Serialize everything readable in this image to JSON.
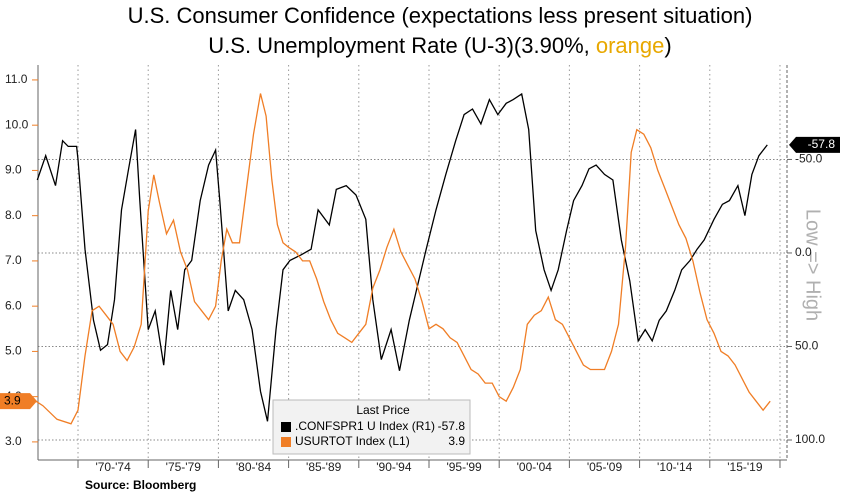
{
  "chart_data": {
    "type": "line",
    "title": "U.S. Consumer Confidence (expectations less present situation)",
    "subtitle_parts": [
      "U.S. Unemployment Rate (U-3)(3.90%, ",
      "orange",
      ")"
    ],
    "subtitle_highlight_color": "#e8a800",
    "y2_label": "Low => High",
    "source": "Source: Bloomberg",
    "legend_title": "Last Price",
    "categories": [
      "'70-'74",
      "'75-'79",
      "'80-'84",
      "'85-'89",
      "'90-'94",
      "'95-'99",
      "'00-'04",
      "'05-'09",
      "'10-'14",
      "'15-'19"
    ],
    "xticks": [
      1970,
      1975,
      1980,
      1985,
      1990,
      1995,
      2000,
      2005,
      2010,
      2015,
      2020
    ],
    "xlim": [
      1967.15,
      2020.5
    ],
    "ylim": [
      2.6,
      11.33
    ],
    "yticks": [
      {
        "value": 3,
        "label": "3.0"
      },
      {
        "value": 4,
        "label": "4.0"
      },
      {
        "value": 5,
        "label": "5.0"
      },
      {
        "value": 6,
        "label": "6.0"
      },
      {
        "value": 7,
        "label": "7.0"
      },
      {
        "value": 8,
        "label": "8.0"
      },
      {
        "value": 9,
        "label": "9.0"
      },
      {
        "value": 10,
        "label": "10.0"
      },
      {
        "value": 11,
        "label": "11.0"
      }
    ],
    "y2lim": [
      110.7,
      -100.5
    ],
    "y2ticks": [
      {
        "value": -50,
        "label": "-50.0"
      },
      {
        "value": 0,
        "label": "0.0"
      },
      {
        "value": 50,
        "label": "50.0"
      },
      {
        "value": 100,
        "label": "100.0"
      }
    ],
    "grid": true,
    "series": [
      {
        "name": ".CONFSPR1 U Index  (R1)",
        "color": "#000000",
        "axis": "y2",
        "x": [
          1967.1,
          1967.7,
          1968.4,
          1968.9,
          1969.3,
          1969.9,
          1970,
          1970.5,
          1971.1,
          1971.6,
          1972.1,
          1972.6,
          1973.1,
          1973.6,
          1974.1,
          1974.4,
          1975,
          1975.5,
          1976.1,
          1976.6,
          1977.1,
          1977.6,
          1978.1,
          1978.7,
          1979.3,
          1979.8,
          1980.1,
          1980.7,
          1981.2,
          1981.8,
          1982.4,
          1983,
          1983.5,
          1984.1,
          1984.6,
          1985.1,
          1985.9,
          1986.6,
          1987.1,
          1987.9,
          1988.4,
          1989.1,
          1989.8,
          1990.5,
          1991,
          1991.6,
          1992.3,
          1992.9,
          1993.6,
          1994.1,
          1994.8,
          1995.5,
          1996.2,
          1996.9,
          1997.5,
          1998.1,
          1998.7,
          1999.3,
          1999.9,
          2000.5,
          2001,
          2001.6,
          2002.1,
          2002.6,
          2003.2,
          2003.7,
          2004.2,
          2004.8,
          2005.3,
          2005.9,
          2006.4,
          2006.9,
          2007.5,
          2008.1,
          2008.7,
          2009.3,
          2009.9,
          2010.4,
          2010.9,
          2011.4,
          2011.9,
          2012.5,
          2013,
          2013.6,
          2014.1,
          2014.6,
          2015.3,
          2015.9,
          2016.4,
          2017,
          2017.5,
          2018,
          2018.5,
          2019.1
        ],
        "values": [
          -39,
          -52,
          -36,
          -60,
          -57,
          -57,
          -50,
          -2,
          36,
          52,
          49,
          25,
          -23,
          -45,
          -66,
          -28,
          41,
          31,
          60,
          20,
          41,
          9,
          4,
          -28,
          -47,
          -55,
          -28,
          31,
          20,
          25,
          41,
          74,
          90,
          41,
          9,
          4,
          1,
          -2,
          -23,
          -15,
          -34,
          -36,
          -31,
          -18,
          25,
          57,
          41,
          63,
          36,
          20,
          -2,
          -23,
          -42,
          -60,
          -74,
          -77,
          -69,
          -82,
          -74,
          -80,
          -82,
          -85,
          -66,
          -12,
          9,
          20,
          9,
          -12,
          -28,
          -36,
          -45,
          -47,
          -42,
          -39,
          -7,
          15,
          47,
          41,
          47,
          36,
          31,
          20,
          9,
          4,
          -2,
          -7,
          -18,
          -26,
          -28,
          -36,
          -20,
          -42,
          -52,
          -57.8
        ]
      },
      {
        "name": "USURTOT Index  (L1)",
        "color": "#f07e26",
        "axis": "y",
        "x": [
          1967,
          1967.5,
          1968.5,
          1969.5,
          1970,
          1970.5,
          1971,
          1971.5,
          1972,
          1972.5,
          1973,
          1973.5,
          1974,
          1974.5,
          1975,
          1975.4,
          1975.8,
          1976.3,
          1976.8,
          1977.3,
          1977.8,
          1978.3,
          1978.8,
          1979.3,
          1979.8,
          1980.2,
          1980.6,
          1981,
          1981.5,
          1982,
          1982.5,
          1983,
          1983.4,
          1983.8,
          1984.2,
          1984.6,
          1985,
          1985.5,
          1986,
          1986.5,
          1987,
          1987.5,
          1988,
          1988.5,
          1989,
          1989.5,
          1990,
          1990.5,
          1991,
          1991.5,
          1992,
          1992.5,
          1993,
          1993.5,
          1994,
          1994.5,
          1995,
          1995.5,
          1996,
          1996.5,
          1997,
          1997.5,
          1998,
          1998.5,
          1999,
          1999.5,
          2000,
          2000.5,
          2001,
          2001.5,
          2002,
          2002.5,
          2003,
          2003.5,
          2004,
          2004.5,
          2005,
          2005.5,
          2006,
          2006.5,
          2007,
          2007.5,
          2008,
          2008.5,
          2009,
          2009.4,
          2009.8,
          2010.3,
          2010.8,
          2011.3,
          2011.8,
          2012.3,
          2012.8,
          2013.3,
          2013.8,
          2014.3,
          2014.8,
          2015.3,
          2015.8,
          2016.3,
          2016.8,
          2017.3,
          2017.8,
          2018.3,
          2018.8,
          2019.3
        ],
        "values": [
          3.9,
          3.8,
          3.5,
          3.4,
          3.7,
          4.9,
          5.9,
          6.0,
          5.8,
          5.6,
          5.0,
          4.8,
          5.1,
          5.6,
          8.1,
          8.9,
          8.3,
          7.6,
          7.9,
          7.2,
          6.8,
          6.1,
          5.9,
          5.7,
          6.0,
          7.0,
          7.7,
          7.4,
          7.4,
          8.6,
          9.8,
          10.7,
          10.2,
          8.8,
          7.8,
          7.4,
          7.3,
          7.2,
          7.0,
          7.0,
          6.6,
          6.1,
          5.7,
          5.4,
          5.3,
          5.2,
          5.4,
          5.6,
          6.4,
          6.8,
          7.3,
          7.7,
          7.2,
          6.9,
          6.6,
          6.1,
          5.5,
          5.6,
          5.5,
          5.3,
          5.2,
          4.9,
          4.6,
          4.5,
          4.3,
          4.3,
          4.0,
          3.9,
          4.2,
          4.6,
          5.6,
          5.8,
          5.9,
          6.2,
          5.7,
          5.6,
          5.3,
          5.0,
          4.7,
          4.6,
          4.6,
          4.6,
          5.0,
          5.6,
          7.3,
          9.4,
          9.9,
          9.8,
          9.5,
          9.0,
          8.6,
          8.2,
          7.8,
          7.5,
          7.0,
          6.3,
          5.7,
          5.4,
          5.0,
          4.9,
          4.7,
          4.4,
          4.1,
          3.9,
          3.7,
          3.9
        ]
      }
    ]
  }
}
